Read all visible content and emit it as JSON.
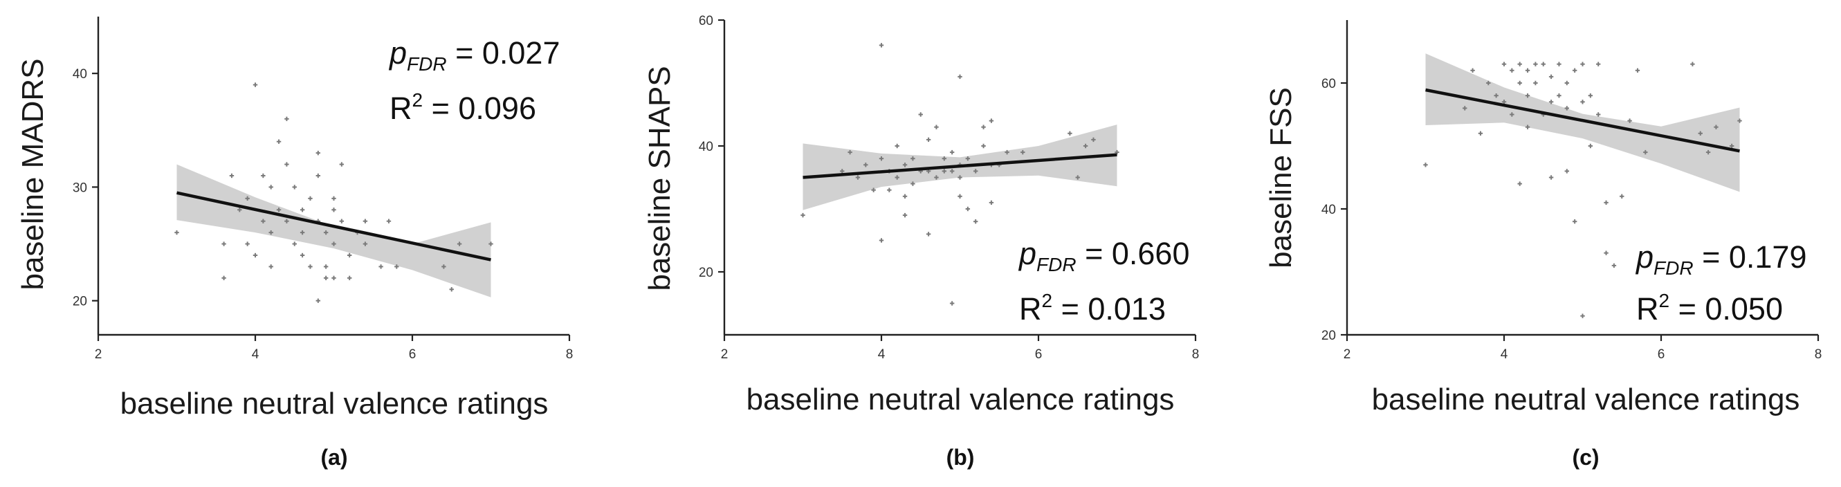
{
  "chart_data": [
    {
      "id": "a",
      "type": "scatter",
      "panel_label": "(a)",
      "xlabel": "baseline neutral valence ratings",
      "ylabel": "baseline MADRS",
      "xlim": [
        2,
        8
      ],
      "ylim": [
        17,
        45
      ],
      "xticks": [
        2,
        4,
        6,
        8
      ],
      "yticks": [
        20,
        30,
        40
      ],
      "stats": {
        "p_label": "p",
        "p_sub": "FDR",
        "p_value": " = 0.027",
        "r2_label": "R",
        "r2_sup": "2",
        "r2_value": " = 0.096"
      },
      "stat_pos": "top-right",
      "fit": {
        "x": [
          3,
          7
        ],
        "y": [
          29.5,
          23.6
        ]
      },
      "band": {
        "x": [
          3,
          4,
          5,
          6,
          7
        ],
        "lower": [
          27.1,
          26.0,
          24.6,
          22.7,
          20.3
        ],
        "upper": [
          32.0,
          29.1,
          26.5,
          25.0,
          26.9
        ]
      },
      "points": [
        [
          3,
          26
        ],
        [
          3.6,
          22
        ],
        [
          3.6,
          25
        ],
        [
          3.7,
          31
        ],
        [
          3.8,
          28
        ],
        [
          3.9,
          29
        ],
        [
          3.9,
          25
        ],
        [
          4.0,
          39
        ],
        [
          4.0,
          24
        ],
        [
          4.1,
          31
        ],
        [
          4.1,
          27
        ],
        [
          4.2,
          30
        ],
        [
          4.2,
          26
        ],
        [
          4.2,
          23
        ],
        [
          4.3,
          34
        ],
        [
          4.3,
          28
        ],
        [
          4.4,
          36
        ],
        [
          4.4,
          32
        ],
        [
          4.4,
          27
        ],
        [
          4.5,
          25
        ],
        [
          4.5,
          30
        ],
        [
          4.6,
          28
        ],
        [
          4.6,
          26
        ],
        [
          4.6,
          24
        ],
        [
          4.7,
          29
        ],
        [
          4.7,
          23
        ],
        [
          4.8,
          33
        ],
        [
          4.8,
          31
        ],
        [
          4.8,
          27
        ],
        [
          4.8,
          20
        ],
        [
          4.9,
          26
        ],
        [
          4.9,
          23
        ],
        [
          4.9,
          22
        ],
        [
          5.0,
          29
        ],
        [
          5.0,
          28
        ],
        [
          5.0,
          25
        ],
        [
          5.0,
          22
        ],
        [
          5.1,
          32
        ],
        [
          5.1,
          27
        ],
        [
          5.2,
          24
        ],
        [
          5.2,
          22
        ],
        [
          5.3,
          26
        ],
        [
          5.4,
          27
        ],
        [
          5.4,
          25
        ],
        [
          5.6,
          23
        ],
        [
          5.7,
          27
        ],
        [
          5.8,
          23
        ],
        [
          6.4,
          23
        ],
        [
          6.5,
          21
        ],
        [
          6.6,
          25
        ],
        [
          7.0,
          25
        ]
      ]
    },
    {
      "id": "b",
      "type": "scatter",
      "panel_label": "(b)",
      "xlabel": "baseline neutral valence ratings",
      "ylabel": "baseline SHAPS",
      "xlim": [
        2,
        8
      ],
      "ylim": [
        10,
        60
      ],
      "xticks": [
        2,
        4,
        6,
        8
      ],
      "yticks": [
        20,
        40,
        60
      ],
      "stats": {
        "p_label": "p",
        "p_sub": "FDR",
        "p_value": " = 0.660",
        "r2_label": "R",
        "r2_sup": "2",
        "r2_value": " = 0.013"
      },
      "stat_pos": "bottom-right",
      "fit": {
        "x": [
          3,
          7
        ],
        "y": [
          35.0,
          38.6
        ]
      },
      "band": {
        "x": [
          3,
          4,
          5,
          6,
          7
        ],
        "lower": [
          29.8,
          33.5,
          35.0,
          35.3,
          33.6
        ],
        "upper": [
          40.4,
          38.8,
          38.2,
          40.0,
          43.4
        ]
      },
      "points": [
        [
          3,
          29
        ],
        [
          3.5,
          36
        ],
        [
          3.6,
          39
        ],
        [
          3.7,
          35
        ],
        [
          3.8,
          37
        ],
        [
          3.9,
          33
        ],
        [
          4.0,
          25
        ],
        [
          4.0,
          56
        ],
        [
          4.0,
          38
        ],
        [
          4.1,
          36
        ],
        [
          4.1,
          33
        ],
        [
          4.2,
          40
        ],
        [
          4.2,
          35
        ],
        [
          4.3,
          37
        ],
        [
          4.3,
          29
        ],
        [
          4.3,
          32
        ],
        [
          4.4,
          38
        ],
        [
          4.4,
          34
        ],
        [
          4.5,
          45
        ],
        [
          4.5,
          36
        ],
        [
          4.6,
          41
        ],
        [
          4.6,
          36
        ],
        [
          4.6,
          26
        ],
        [
          4.7,
          43
        ],
        [
          4.7,
          35
        ],
        [
          4.8,
          38
        ],
        [
          4.8,
          36
        ],
        [
          4.9,
          15
        ],
        [
          4.9,
          39
        ],
        [
          4.9,
          36
        ],
        [
          5.0,
          51
        ],
        [
          5.0,
          37
        ],
        [
          5.0,
          35
        ],
        [
          5.0,
          32
        ],
        [
          5.1,
          30
        ],
        [
          5.1,
          38
        ],
        [
          5.2,
          36
        ],
        [
          5.2,
          28
        ],
        [
          5.3,
          43
        ],
        [
          5.3,
          40
        ],
        [
          5.4,
          44
        ],
        [
          5.4,
          37
        ],
        [
          5.4,
          31
        ],
        [
          5.5,
          37
        ],
        [
          5.6,
          39
        ],
        [
          5.8,
          39
        ],
        [
          6.4,
          42
        ],
        [
          6.5,
          35
        ],
        [
          6.6,
          40
        ],
        [
          6.7,
          41
        ],
        [
          7.0,
          39
        ]
      ]
    },
    {
      "id": "c",
      "type": "scatter",
      "panel_label": "(c)",
      "xlabel": "baseline neutral valence ratings",
      "ylabel": "baseline FSS",
      "xlim": [
        2,
        8
      ],
      "ylim": [
        20,
        70
      ],
      "xticks": [
        2,
        4,
        6,
        8
      ],
      "yticks": [
        20,
        40,
        60
      ],
      "stats": {
        "p_label": "p",
        "p_sub": "FDR",
        "p_value": " = 0.179",
        "r2_label": "R",
        "r2_sup": "2",
        "r2_value": " = 0.050"
      },
      "stat_pos": "bottom-right",
      "fit": {
        "x": [
          3,
          7
        ],
        "y": [
          58.9,
          49.2
        ]
      },
      "band": {
        "x": [
          3,
          4,
          5,
          6,
          7
        ],
        "lower": [
          53.3,
          53.7,
          51.2,
          47.2,
          42.7
        ],
        "upper": [
          64.7,
          59.3,
          55.1,
          53.1,
          56.1
        ]
      },
      "points": [
        [
          3,
          47
        ],
        [
          3.5,
          56
        ],
        [
          3.6,
          62
        ],
        [
          3.7,
          52
        ],
        [
          3.8,
          60
        ],
        [
          3.9,
          58
        ],
        [
          4.0,
          63
        ],
        [
          4.0,
          57
        ],
        [
          4.1,
          62
        ],
        [
          4.1,
          55
        ],
        [
          4.2,
          63
        ],
        [
          4.2,
          60
        ],
        [
          4.2,
          44
        ],
        [
          4.3,
          62
        ],
        [
          4.3,
          58
        ],
        [
          4.3,
          53
        ],
        [
          4.4,
          63
        ],
        [
          4.4,
          60
        ],
        [
          4.5,
          63
        ],
        [
          4.5,
          55
        ],
        [
          4.6,
          61
        ],
        [
          4.6,
          57
        ],
        [
          4.6,
          45
        ],
        [
          4.7,
          63
        ],
        [
          4.7,
          58
        ],
        [
          4.8,
          60
        ],
        [
          4.8,
          56
        ],
        [
          4.8,
          46
        ],
        [
          4.9,
          38
        ],
        [
          4.9,
          62
        ],
        [
          5.0,
          63
        ],
        [
          5.0,
          57
        ],
        [
          5.0,
          23
        ],
        [
          5.1,
          58
        ],
        [
          5.1,
          50
        ],
        [
          5.2,
          55
        ],
        [
          5.2,
          63
        ],
        [
          5.3,
          41
        ],
        [
          5.3,
          33
        ],
        [
          5.4,
          31
        ],
        [
          5.5,
          42
        ],
        [
          5.6,
          54
        ],
        [
          5.7,
          62
        ],
        [
          5.8,
          49
        ],
        [
          6.4,
          63
        ],
        [
          6.5,
          52
        ],
        [
          6.6,
          49
        ],
        [
          6.7,
          53
        ],
        [
          6.9,
          50
        ],
        [
          7.0,
          54
        ]
      ]
    }
  ]
}
